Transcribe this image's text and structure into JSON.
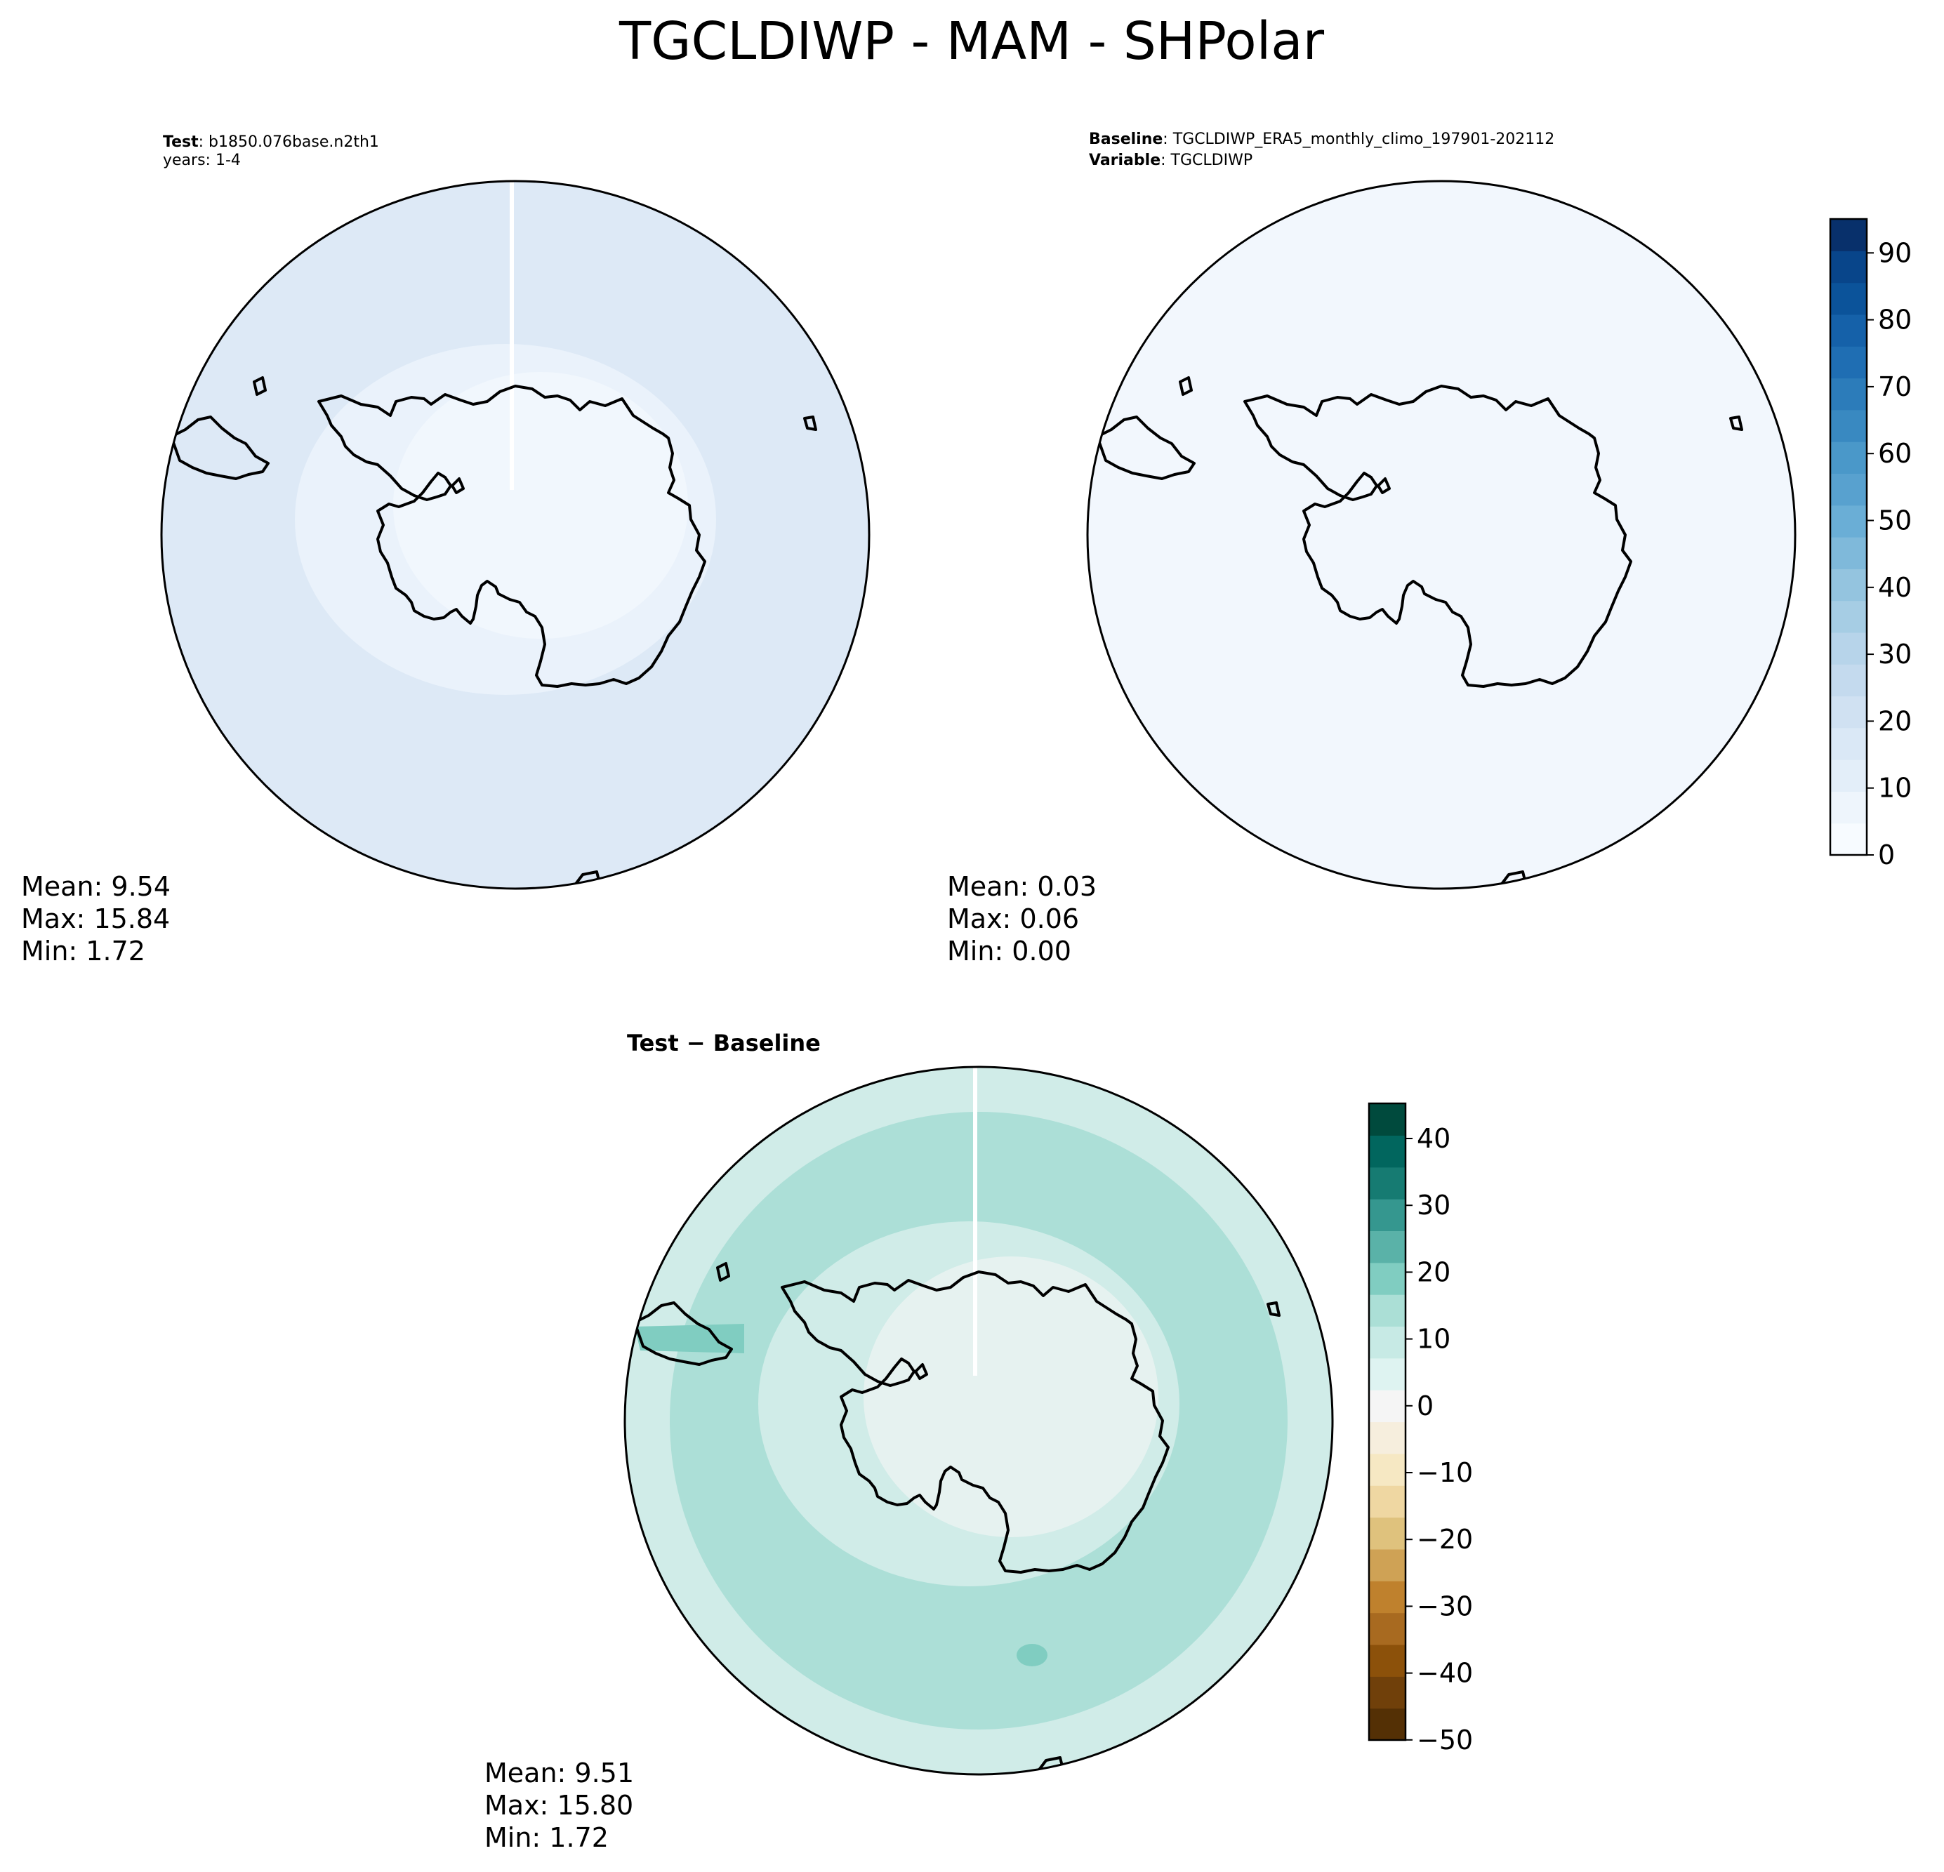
{
  "figure": {
    "title": "TGCLDIWP - MAM - SHPolar"
  },
  "panels": {
    "test": {
      "header_bold": "Test",
      "header_text": ": b1850.076base.n2th1",
      "header_line2": "years: 1-4",
      "stats": {
        "mean": "Mean:  9.54",
        "max": "Max: 15.84",
        "min": "Min:  1.72"
      }
    },
    "baseline": {
      "header_bold": "Baseline",
      "header_text": ": TGCLDIWP_ERA5_monthly_climo_197901-202112",
      "header_bold2": "Variable",
      "header_text2": ": TGCLDIWP",
      "stats": {
        "mean": "Mean:  0.03",
        "max": "Max:  0.06",
        "min": "Min:  0.00"
      }
    },
    "diff": {
      "title": "Test − Baseline",
      "stats": {
        "mean": "Mean:  9.51",
        "max": "Max: 15.80",
        "min": "Min:  1.72"
      }
    }
  },
  "colorbars": {
    "blues": {
      "ticks": [
        "0",
        "10",
        "20",
        "30",
        "40",
        "50",
        "60",
        "70",
        "80",
        "90"
      ],
      "colors": [
        "#f7fbff",
        "#eef5fc",
        "#e3eef9",
        "#dae8f6",
        "#d0e1f2",
        "#c4daee",
        "#b7d4ea",
        "#a6cde4",
        "#94c4df",
        "#7fb9da",
        "#6aaed6",
        "#58a1cf",
        "#4a98c9",
        "#3989c1",
        "#2c7cba",
        "#1f6eb3",
        "#1561a9",
        "#0b539a",
        "#08458a",
        "#08306b"
      ]
    },
    "brbg": {
      "ticks": [
        "40",
        "30",
        "20",
        "10",
        "0",
        "−10",
        "−20",
        "−30",
        "−40",
        "−50"
      ],
      "colors": [
        "#004a3d",
        "#01665e",
        "#167b72",
        "#35978f",
        "#5ab2a8",
        "#80cdc1",
        "#abdfd6",
        "#c7eae5",
        "#def3f1",
        "#f5f5f5",
        "#f6eedd",
        "#f6e8c3",
        "#efd7a2",
        "#dfc27d",
        "#cfa255",
        "#bf812d",
        "#a86a20",
        "#8c510a",
        "#70400a",
        "#543005"
      ]
    }
  },
  "map_colors": {
    "test_base": "#dde9f6",
    "test_inner": "#eaf2fb",
    "test_ice": "#f1f7fd",
    "baseline_fill": "#f2f7fd",
    "diff_outer": "#d0ece8",
    "diff_mid": "#acdfd7",
    "diff_ice": "#e6f2f0"
  }
}
